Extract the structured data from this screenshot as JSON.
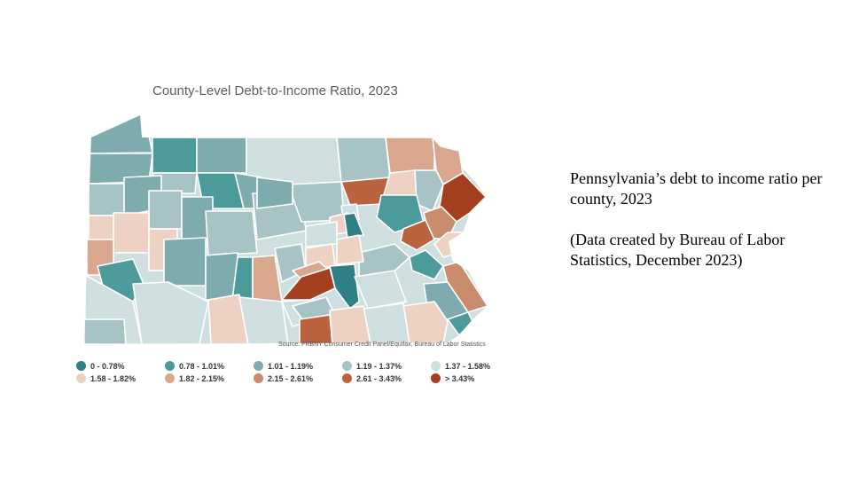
{
  "map": {
    "title": "County-Level Debt-to-Income Ratio, 2023",
    "source": "Source: FRBNY Consumer Credit Panel/Equifax, Bureau of Labor Statistics",
    "legend": [
      {
        "label": "0 - 0.78%",
        "color": "#2f7f86"
      },
      {
        "label": "0.78 - 1.01%",
        "color": "#4c9a9a"
      },
      {
        "label": "1.01 - 1.19%",
        "color": "#7eabae"
      },
      {
        "label": "1.19 - 1.37%",
        "color": "#a8c3c6"
      },
      {
        "label": "1.37 - 1.58%",
        "color": "#cfdedf"
      },
      {
        "label": "1.58 - 1.82%",
        "color": "#edd2c4"
      },
      {
        "label": "1.82 - 2.15%",
        "color": "#d9a78d"
      },
      {
        "label": "2.15 - 2.61%",
        "color": "#c98c6c"
      },
      {
        "label": "2.61 - 3.43%",
        "color": "#b9643f"
      },
      {
        "label": "> 3.43%",
        "color": "#a4401f"
      }
    ]
  },
  "caption": {
    "line1": "Pennsylvania’s debt to income ratio per county, 2023",
    "line2": "(Data created by Bureau of Labor Statistics, December 2023)"
  }
}
